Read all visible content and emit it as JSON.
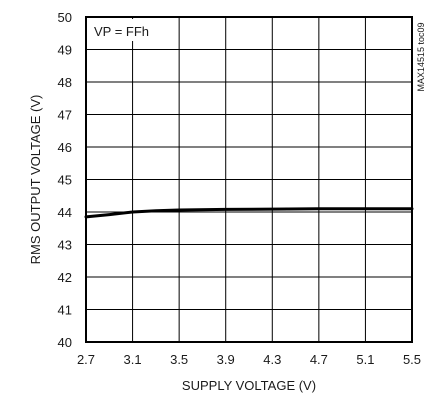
{
  "chart_data": {
    "type": "line",
    "xlabel": "SUPPLY VOLTAGE (V)",
    "ylabel": "RMS OUTPUT VOLTAGE (V)",
    "xlim": [
      2.7,
      5.5
    ],
    "ylim": [
      40,
      50
    ],
    "xticks": [
      2.7,
      3.1,
      3.5,
      3.9,
      4.3,
      4.7,
      5.1,
      5.5
    ],
    "xtick_labels": [
      "2.7",
      "3.1",
      "3.5",
      "3.9",
      "4.3",
      "4.7",
      "5.1",
      "5.5"
    ],
    "yticks": [
      40,
      41,
      42,
      43,
      44,
      45,
      46,
      47,
      48,
      49,
      50
    ],
    "ytick_labels": [
      "40",
      "41",
      "42",
      "43",
      "44",
      "45",
      "46",
      "47",
      "48",
      "49",
      "50"
    ],
    "grid": true,
    "annotation": "VP = FFh",
    "figure_id": "MAX14515 toc09",
    "series": [
      {
        "x": [
          2.7,
          2.9,
          3.1,
          3.3,
          3.5,
          3.9,
          4.3,
          4.7,
          5.1,
          5.5
        ],
        "y": [
          43.85,
          43.92,
          44.0,
          44.04,
          44.06,
          44.08,
          44.09,
          44.1,
          44.1,
          44.1
        ],
        "color": "#000000"
      }
    ]
  }
}
